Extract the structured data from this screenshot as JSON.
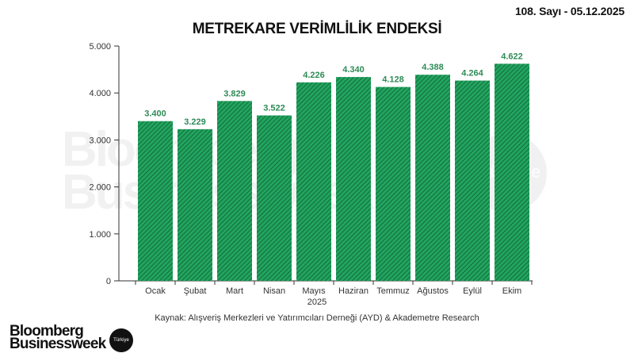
{
  "header": {
    "issue": "108. Sayı - 05.12.2025",
    "title": "METREKARE VERİMLİLİK ENDEKSİ"
  },
  "watermark": {
    "line1": "Bloomberg",
    "line2": "Businessweek",
    "circle_text": "Türkiye"
  },
  "chart_data": {
    "type": "bar",
    "title": "METREKARE VERİMLİLİK ENDEKSİ",
    "xlabel": "2025",
    "ylabel": "",
    "categories": [
      "Ocak",
      "Şubat",
      "Mart",
      "Nisan",
      "Mayıs",
      "Haziran",
      "Temmuz",
      "Ağustos",
      "Eylül",
      "Ekim"
    ],
    "values": [
      3400,
      3229,
      3829,
      3522,
      4226,
      4340,
      4128,
      4388,
      4264,
      4622
    ],
    "value_labels": [
      "3.400",
      "3.229",
      "3.829",
      "3.522",
      "4.226",
      "4.340",
      "4.128",
      "4.388",
      "4.264",
      "4.622"
    ],
    "ylim": [
      0,
      5000
    ],
    "yticks": [
      0,
      1000,
      2000,
      3000,
      4000,
      5000
    ],
    "ytick_labels": [
      "0",
      "1.000",
      "2.000",
      "3.000",
      "4.000",
      "5.000"
    ],
    "grid": false,
    "legend": null,
    "bar_color": "#1f9a5a",
    "hatch_color": "#0f5e33",
    "label_color": "#2e8b57"
  },
  "footer": {
    "year": "2025",
    "source": "Kaynak: Alışveriş Merkezleri ve Yatırımcıları Derneği (AYD) & Akademetre Research",
    "logo_line1": "Bloomberg",
    "logo_line2": "Businessweek",
    "logo_badge": "Türkiye"
  }
}
